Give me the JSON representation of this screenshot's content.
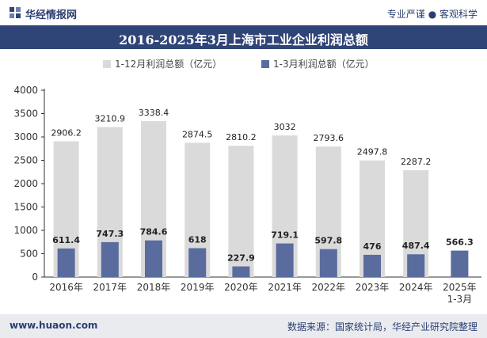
{
  "header": {
    "brand": "华经情报网",
    "logo_icon": "huajing-logo-icon",
    "tagline": "专业严谨 ● 客观科学"
  },
  "title": "2016-2025年3月上海市工业企业利润总额",
  "chart_data": {
    "type": "bar",
    "categories": [
      "2016年",
      "2017年",
      "2018年",
      "2019年",
      "2020年",
      "2021年",
      "2022年",
      "2023年",
      "2024年",
      "2025年\n1-3月"
    ],
    "series": [
      {
        "name": "1-12月利润总额（亿元）",
        "color": "#dadada",
        "values": [
          2906.2,
          3210.9,
          3338.4,
          2874.5,
          2810.2,
          3032,
          2793.6,
          2497.8,
          2287.2,
          null
        ]
      },
      {
        "name": "1-3月利润总额（亿元）",
        "color": "#5a6b9e",
        "values": [
          611.4,
          747.3,
          784.6,
          618,
          227.9,
          719.1,
          597.8,
          476,
          487.4,
          566.3
        ]
      }
    ],
    "ylim": [
      0,
      4000
    ],
    "yticks": [
      0,
      500,
      1000,
      1500,
      2000,
      2500,
      3000,
      3500,
      4000
    ],
    "legend": "top-center",
    "grid": false
  },
  "footer": {
    "site": "www.huaon.com",
    "source": "数据来源：国家统计局，华经产业研究院整理"
  }
}
